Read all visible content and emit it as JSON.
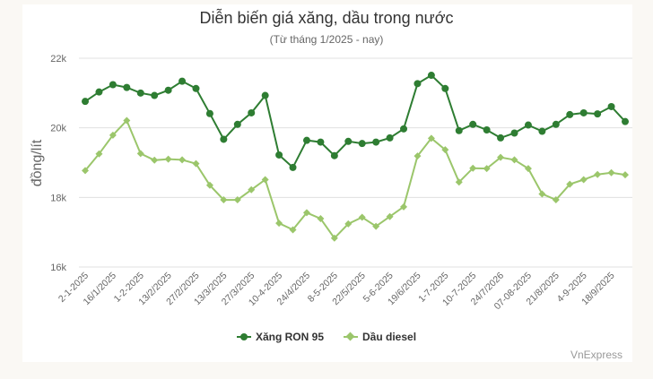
{
  "header": {
    "title": "Diễn biến giá xăng, dầu trong nước",
    "subtitle": "(Từ tháng 1/2025 - nay)"
  },
  "credit": "VnExpress",
  "colors": {
    "ron95": "#2e7d32",
    "diesel": "#9bc66b",
    "grid": "#e0e0e0",
    "axis_text": "#666666"
  },
  "chart_data": {
    "type": "line",
    "title": "Diễn biến giá xăng, dầu trong nước",
    "subtitle": "(Từ tháng 1/2025 - nay)",
    "xlabel": "",
    "ylabel": "đồng/lít",
    "ylim": [
      16000,
      22000
    ],
    "yticks": [
      16000,
      18000,
      20000,
      22000
    ],
    "ytick_labels": [
      "16k",
      "18k",
      "20k",
      "22k"
    ],
    "grid": true,
    "legend_position": "bottom",
    "x_tick_labels": [
      "2-1-2025",
      "16/1/2025",
      "1-2-2025",
      "13/2/2025",
      "27/2/2025",
      "13/3/2025",
      "27/3/2025",
      "10-4-2025",
      "24/4/2025",
      "8-5-2025",
      "22/5/2025",
      "5-6-2025",
      "19/6/2025",
      "1-7-2025",
      "10-7-2025",
      "24/7/2026",
      "07-08-2025",
      "21/8/2025",
      "4-9-2025",
      "18/9/2025"
    ],
    "x_tick_every": 2,
    "point_count": 40,
    "series": [
      {
        "name": "Xăng RON 95",
        "marker": "circle",
        "values": [
          20760,
          21030,
          21240,
          21160,
          21000,
          20930,
          21080,
          21340,
          21130,
          20410,
          19670,
          20100,
          20430,
          20930,
          19220,
          18860,
          19640,
          19590,
          19200,
          19610,
          19550,
          19590,
          19710,
          19970,
          21270,
          21510,
          21130,
          19920,
          20100,
          19940,
          19710,
          19850,
          20080,
          19900,
          20100,
          20380,
          20430,
          20400,
          20610,
          20180
        ]
      },
      {
        "name": "Dầu diesel",
        "marker": "diamond",
        "values": [
          18770,
          19250,
          19790,
          20210,
          19260,
          19070,
          19100,
          19080,
          18970,
          18350,
          17930,
          17930,
          18220,
          18510,
          17260,
          17070,
          17560,
          17390,
          16830,
          17240,
          17430,
          17170,
          17450,
          17730,
          19190,
          19700,
          19370,
          18440,
          18840,
          18830,
          19150,
          19080,
          18830,
          18100,
          17930,
          18380,
          18510,
          18660,
          18710,
          18650
        ]
      }
    ]
  }
}
